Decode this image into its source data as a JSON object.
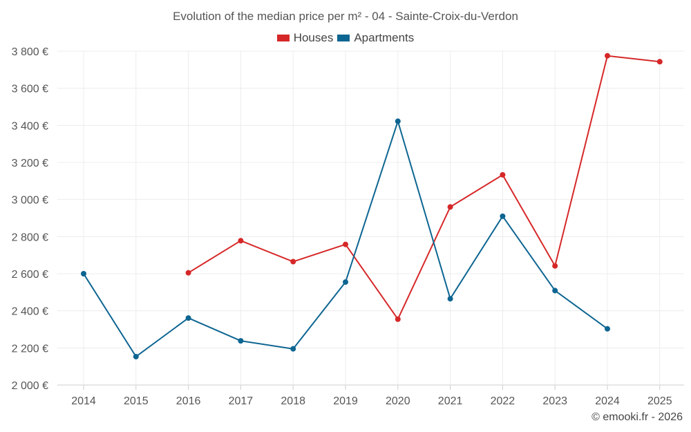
{
  "chart_data": {
    "type": "line",
    "title": "Evolution of the median price per m² - 04 - Sainte-Croix-du-Verdon",
    "categories": [
      "2014",
      "2015",
      "2016",
      "2017",
      "2018",
      "2019",
      "2020",
      "2021",
      "2022",
      "2023",
      "2024",
      "2025"
    ],
    "series": [
      {
        "name": "Houses",
        "color": "#d62728",
        "values": [
          null,
          null,
          2605,
          2778,
          2665,
          2758,
          2355,
          2960,
          3133,
          2642,
          3775,
          3743
        ]
      },
      {
        "name": "Apartments",
        "color": "#0d6591",
        "values": [
          2600,
          2153,
          2361,
          2238,
          2195,
          2555,
          3422,
          2465,
          2910,
          2509,
          2303,
          null
        ]
      }
    ],
    "y_ticks": [
      "2 000 €",
      "2 200 €",
      "2 400 €",
      "2 600 €",
      "2 800 €",
      "3 000 €",
      "3 200 €",
      "3 400 €",
      "3 600 €",
      "3 800 €"
    ],
    "ylim": [
      2000,
      3800
    ],
    "xlabel": "",
    "ylabel": "",
    "legend_position": "top-center",
    "grid": true
  },
  "credit": "© emooki.fr - 2026"
}
